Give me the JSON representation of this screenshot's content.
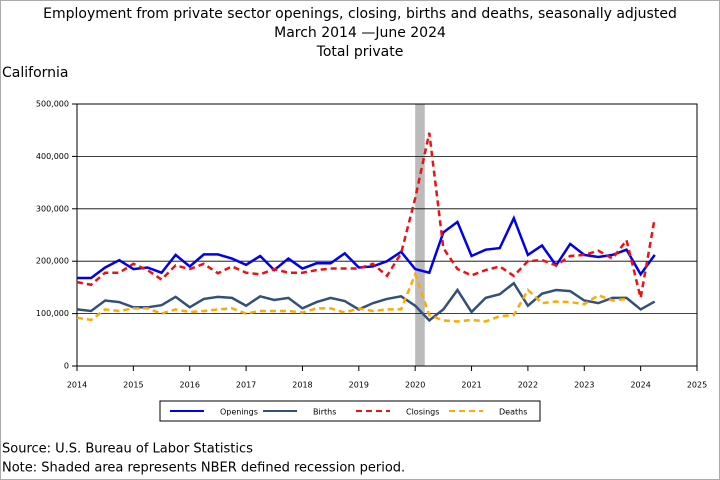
{
  "chart_data": {
    "type": "line",
    "title": [
      "Employment from private sector openings, closing, births and deaths, seasonally adjusted",
      "March 2014 —June 2024",
      "Total private"
    ],
    "subtitle": "California",
    "x": [
      2014,
      2014.25,
      2014.5,
      2014.75,
      2015,
      2015.25,
      2015.5,
      2015.75,
      2016,
      2016.25,
      2016.5,
      2016.75,
      2017,
      2017.25,
      2017.5,
      2017.75,
      2018,
      2018.25,
      2018.5,
      2018.75,
      2019,
      2019.25,
      2019.5,
      2019.75,
      2020,
      2020.25,
      2020.5,
      2020.75,
      2021,
      2021.25,
      2021.5,
      2021.75,
      2022,
      2022.25,
      2022.5,
      2022.75,
      2023,
      2023.25,
      2023.5,
      2023.75,
      2024,
      2024.25
    ],
    "series": [
      {
        "name": "Openings",
        "color": "#0000ee",
        "dash": false,
        "values": [
          168000,
          168000,
          188000,
          202000,
          185000,
          188000,
          178000,
          212000,
          190000,
          213000,
          213000,
          205000,
          193000,
          210000,
          183000,
          205000,
          186000,
          196000,
          196000,
          215000,
          188000,
          190000,
          200000,
          218000,
          185000,
          178000,
          255000,
          275000,
          210000,
          222000,
          225000,
          282000,
          212000,
          230000,
          192000,
          233000,
          212000,
          208000,
          212000,
          222000,
          175000,
          212000
        ]
      },
      {
        "name": "Births",
        "color": "#34507a",
        "dash": false,
        "values": [
          108000,
          105000,
          125000,
          122000,
          112000,
          112000,
          116000,
          132000,
          112000,
          128000,
          132000,
          130000,
          115000,
          133000,
          126000,
          130000,
          110000,
          122000,
          130000,
          124000,
          108000,
          120000,
          128000,
          133000,
          115000,
          87000,
          108000,
          145000,
          103000,
          130000,
          137000,
          158000,
          115000,
          138000,
          145000,
          143000,
          125000,
          120000,
          130000,
          130000,
          108000,
          123000
        ]
      },
      {
        "name": "Closings",
        "color": "#ee1111",
        "dash": true,
        "values": [
          160000,
          155000,
          178000,
          178000,
          195000,
          183000,
          165000,
          192000,
          185000,
          195000,
          177000,
          190000,
          178000,
          175000,
          185000,
          178000,
          178000,
          183000,
          186000,
          186000,
          186000,
          195000,
          172000,
          215000,
          320000,
          445000,
          225000,
          185000,
          173000,
          183000,
          190000,
          172000,
          200000,
          202000,
          192000,
          210000,
          212000,
          220000,
          205000,
          240000,
          130000,
          282000
        ]
      },
      {
        "name": "Deaths",
        "color": "#ffaa00",
        "dash": true,
        "values": [
          92000,
          88000,
          108000,
          105000,
          110000,
          110000,
          100000,
          108000,
          103000,
          105000,
          108000,
          110000,
          100000,
          105000,
          105000,
          105000,
          102000,
          110000,
          110000,
          102000,
          110000,
          105000,
          108000,
          108000,
          175000,
          97000,
          87000,
          85000,
          88000,
          85000,
          95000,
          97000,
          145000,
          120000,
          123000,
          122000,
          118000,
          135000,
          125000,
          128000,
          null,
          null
        ]
      }
    ],
    "recession": [
      2020,
      2020.17
    ],
    "xlim": [
      2014,
      2025
    ],
    "xticks": [
      2014,
      2015,
      2016,
      2017,
      2018,
      2019,
      2020,
      2021,
      2022,
      2023,
      2024,
      2025
    ],
    "ylim": [
      0,
      500000
    ],
    "yticks": [
      0,
      {
        "value": 100000,
        "label": "100,000"
      },
      {
        "value": 200000,
        "label": "200,000"
      },
      {
        "value": 300000,
        "label": "300,000"
      },
      {
        "value": 400000,
        "label": "400,000"
      },
      {
        "value": 500000,
        "label": "500,000"
      }
    ],
    "grid": true,
    "notes": [
      "Source: U.S. Bureau of Labor Statistics",
      "Note: Shaded area represents NBER defined recession period."
    ]
  }
}
